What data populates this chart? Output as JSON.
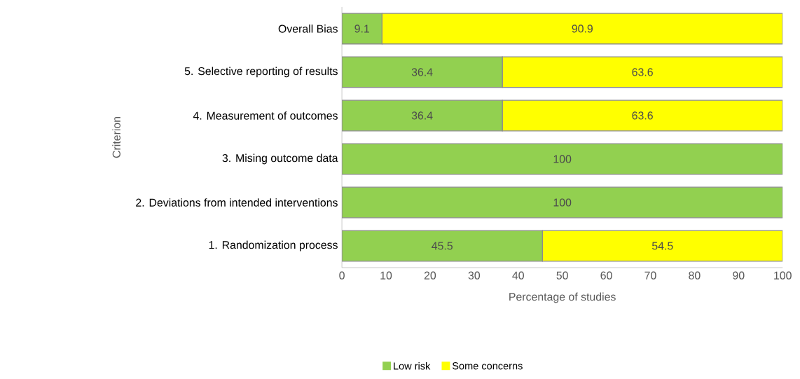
{
  "chart_data": {
    "type": "bar",
    "orientation": "horizontal",
    "stacked": true,
    "xlabel": "Percentage of studies",
    "ylabel": "Criterion",
    "categories": [
      "Overall Bias",
      "5. Selective reporting of results",
      "4. Measurement of outcomes",
      "3. Mising outcome data",
      "2. Deviations from intended interventions",
      "1. Randomization process"
    ],
    "series": [
      {
        "name": "Low risk",
        "color": "#92d050",
        "values": [
          9.1,
          36.4,
          36.4,
          100,
          100,
          45.5
        ],
        "value_labels": [
          "9.1",
          "36.4",
          "36.4",
          "100",
          "100",
          "45.5"
        ]
      },
      {
        "name": "Some concerns",
        "color": "#ffff00",
        "values": [
          90.9,
          63.6,
          63.6,
          0,
          0,
          54.5
        ],
        "value_labels": [
          "90.9",
          "63.6",
          "63.6",
          null,
          null,
          "54.5"
        ]
      }
    ],
    "xlim": [
      0,
      100
    ],
    "xticks": [
      0,
      10,
      20,
      30,
      40,
      50,
      60,
      70,
      80,
      90,
      100
    ],
    "legend": "bottom",
    "grid": false
  }
}
